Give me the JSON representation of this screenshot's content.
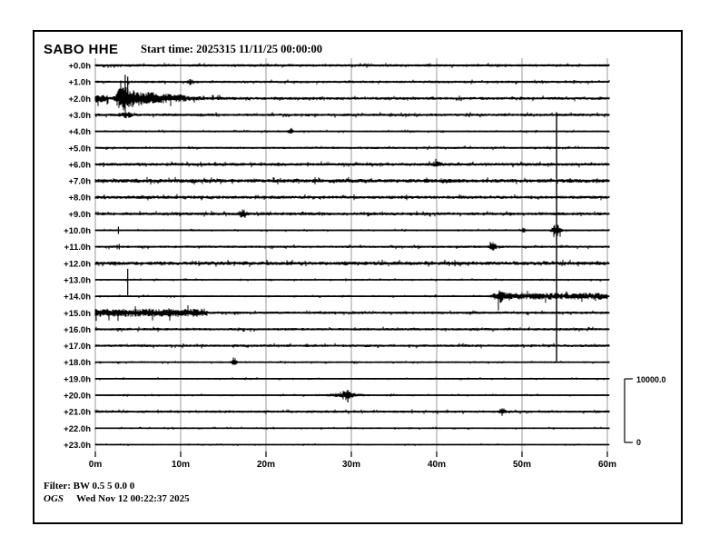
{
  "header": {
    "station": "SABO HHE",
    "start_time": "Start time: 2025315 11/11/25 00:00:00"
  },
  "footer": {
    "filter": "Filter: BW 0.5 5 0.0 0",
    "agency": "OGS",
    "generated": "Wed Nov 12 00:22:37 2025"
  },
  "chart_data": {
    "type": "line",
    "title": "SABO HHE",
    "subtitle": "Start time: 2025315 11/11/25 00:00:00",
    "x_axis": {
      "ticks": [
        "0m",
        "10m",
        "20m",
        "30m",
        "40m",
        "50m",
        "60m"
      ],
      "range_minutes": [
        0,
        60
      ]
    },
    "scale_bar": {
      "max_label": "10000.0",
      "min_label": "0"
    },
    "grid": true,
    "rows": [
      {
        "label": "+0.0h",
        "noise": 1.3,
        "events": []
      },
      {
        "label": "+1.0h",
        "noise": 1.2,
        "events": [
          {
            "type": "blip",
            "m": 11.2,
            "amp": 2.3,
            "w": 0.3
          }
        ]
      },
      {
        "label": "+2.0h",
        "noise": 1.4,
        "events": [
          {
            "type": "thick",
            "m0": 0,
            "m1": 1.5,
            "amp": 2.8
          },
          {
            "type": "burst",
            "m": 3.1,
            "amp": 11.5,
            "rise": 0.6,
            "decay": 3.2
          },
          {
            "type": "thick",
            "m0": 6,
            "m1": 10.6,
            "amp": 1.1
          },
          {
            "type": "spike",
            "m": 3.5,
            "up": 26,
            "down": 13
          },
          {
            "type": "spike",
            "m": 3.8,
            "up": 24,
            "down": 8
          }
        ]
      },
      {
        "label": "+3.0h",
        "noise": 1.4,
        "events": [
          {
            "type": "blip",
            "m": 3.6,
            "amp": 2.5,
            "w": 0.6
          }
        ]
      },
      {
        "label": "+4.0h",
        "noise": 0.9,
        "events": [
          {
            "type": "blip",
            "m": 22.9,
            "amp": 2.2,
            "w": 0.3
          }
        ]
      },
      {
        "label": "+5.0h",
        "noise": 1.1,
        "events": []
      },
      {
        "label": "+6.0h",
        "noise": 1.5,
        "events": [
          {
            "type": "blip",
            "m": 40.0,
            "amp": 2.0,
            "w": 0.5
          }
        ]
      },
      {
        "label": "+7.0h",
        "noise": 1.9,
        "events": []
      },
      {
        "label": "+8.0h",
        "noise": 1.6,
        "events": []
      },
      {
        "label": "+9.0h",
        "noise": 1.5,
        "events": [
          {
            "type": "blip",
            "m": 17.3,
            "amp": 3.5,
            "w": 0.4
          }
        ]
      },
      {
        "label": "+10.0h",
        "noise": 0.8,
        "events": [
          {
            "type": "spike",
            "m": 2.7,
            "up": 4,
            "down": 4
          },
          {
            "type": "blip",
            "m": 50.2,
            "amp": 2.8,
            "w": 0.2
          },
          {
            "type": "clip",
            "m": 54.05,
            "up": 130,
            "down": 144
          },
          {
            "type": "blip",
            "m": 54.05,
            "amp": 5.5,
            "w": 0.5
          }
        ]
      },
      {
        "label": "+11.0h",
        "noise": 1.2,
        "events": [
          {
            "type": "spike",
            "m": 2.8,
            "up": 3,
            "down": 3
          },
          {
            "type": "blip",
            "m": 46.6,
            "amp": 3.8,
            "w": 0.35
          }
        ]
      },
      {
        "label": "+12.0h",
        "noise": 1.8,
        "events": []
      },
      {
        "label": "+13.0h",
        "noise": 0.8,
        "events": [
          {
            "type": "spike",
            "m": 3.8,
            "up": 12,
            "down": 17
          }
        ]
      },
      {
        "label": "+14.0h",
        "noise": 0.9,
        "events": [
          {
            "type": "blip",
            "m": 47.2,
            "amp": 4.2,
            "w": 0.6
          },
          {
            "type": "thick",
            "m0": 47.2,
            "m1": 60,
            "amp": 2.5
          }
        ]
      },
      {
        "label": "+15.0h",
        "noise": 1.3,
        "events": [
          {
            "type": "thick",
            "m0": 0,
            "m1": 13.1,
            "amp": 2.8
          }
        ]
      },
      {
        "label": "+16.0h",
        "noise": 1.3,
        "events": []
      },
      {
        "label": "+17.0h",
        "noise": 1.3,
        "events": []
      },
      {
        "label": "+18.0h",
        "noise": 0.9,
        "events": [
          {
            "type": "blip",
            "m": 16.3,
            "amp": 2.3,
            "w": 0.35
          }
        ]
      },
      {
        "label": "+19.0h",
        "noise": 0.8,
        "events": []
      },
      {
        "label": "+20.0h",
        "noise": 0.8,
        "events": [
          {
            "type": "blip",
            "m": 28.3,
            "amp": 1.4,
            "w": 1.2
          },
          {
            "type": "burst",
            "m": 29.4,
            "amp": 4.2,
            "rise": 0.5,
            "decay": 0.9
          },
          {
            "type": "spike",
            "m": 29.6,
            "up": 6,
            "down": 8
          }
        ]
      },
      {
        "label": "+21.0h",
        "noise": 1.2,
        "events": [
          {
            "type": "blip",
            "m": 47.7,
            "amp": 2.8,
            "w": 0.35
          }
        ]
      },
      {
        "label": "+22.0h",
        "noise": 0.8,
        "events": []
      },
      {
        "label": "+23.0h",
        "noise": 0.7,
        "events": []
      }
    ]
  }
}
